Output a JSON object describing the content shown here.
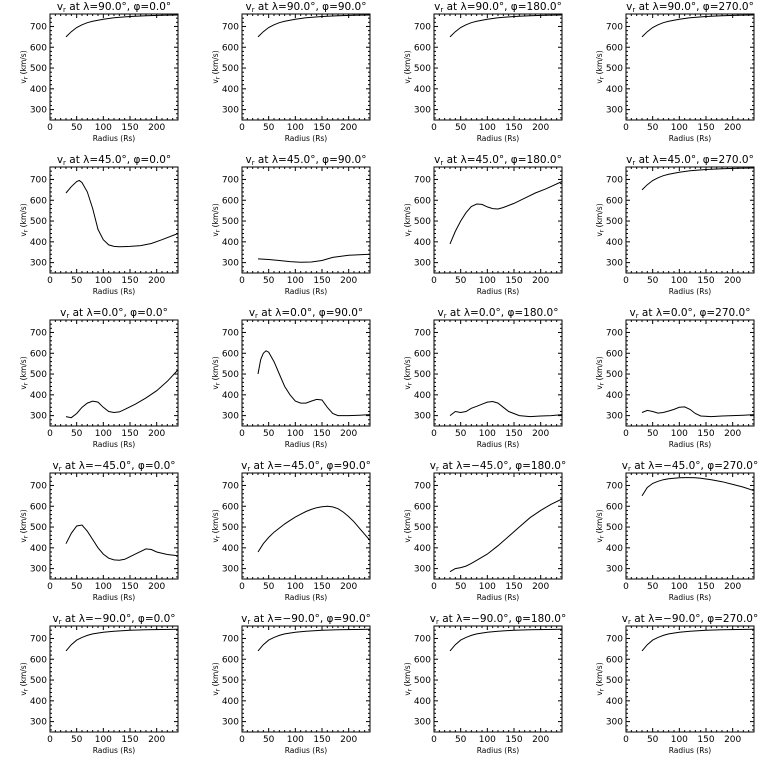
{
  "figure": {
    "xlabel": "Radius (Rs)",
    "ylabel": "vr (km/s)",
    "xlim": [
      0,
      240
    ],
    "ylim": [
      250,
      760
    ],
    "xticks": [
      "0",
      "50",
      "100",
      "150",
      "200"
    ],
    "yticks": [
      "300",
      "400",
      "500",
      "600",
      "700"
    ]
  },
  "chart_data": [
    {
      "type": "line",
      "title": "vr at λ=90.0°, φ=0.0°",
      "title_prefix": "v",
      "title_sub": "r",
      "title_rest": " at λ=90.0°, φ=0.0°",
      "x": [
        30,
        40,
        50,
        60,
        70,
        80,
        100,
        120,
        150,
        180,
        210,
        240
      ],
      "y": [
        650,
        675,
        695,
        708,
        718,
        725,
        735,
        742,
        748,
        752,
        754,
        755
      ]
    },
    {
      "type": "line",
      "title": "vr at λ=90.0°, φ=90.0°",
      "title_prefix": "v",
      "title_sub": "r",
      "title_rest": " at λ=90.0°, φ=90.0°",
      "x": [
        30,
        40,
        50,
        60,
        70,
        80,
        100,
        120,
        150,
        180,
        210,
        240
      ],
      "y": [
        650,
        675,
        695,
        708,
        718,
        725,
        735,
        742,
        748,
        752,
        754,
        755
      ]
    },
    {
      "type": "line",
      "title": "vr at λ=90.0°, φ=180.0°",
      "title_prefix": "v",
      "title_sub": "r",
      "title_rest": " at λ=90.0°, φ=180.0°",
      "x": [
        30,
        40,
        50,
        60,
        70,
        80,
        100,
        120,
        150,
        180,
        210,
        240
      ],
      "y": [
        650,
        675,
        695,
        708,
        718,
        725,
        735,
        742,
        748,
        752,
        754,
        755
      ]
    },
    {
      "type": "line",
      "title": "vr at λ=90.0°, φ=270.0°",
      "title_prefix": "v",
      "title_sub": "r",
      "title_rest": " at λ=90.0°, φ=270.0°",
      "x": [
        30,
        40,
        50,
        60,
        70,
        80,
        100,
        120,
        150,
        180,
        210,
        240
      ],
      "y": [
        650,
        675,
        695,
        708,
        718,
        725,
        735,
        742,
        748,
        752,
        754,
        755
      ]
    },
    {
      "type": "line",
      "title": "vr at λ=45.0°, φ=0.0°",
      "title_prefix": "v",
      "title_sub": "r",
      "title_rest": " at λ=45.0°, φ=0.0°",
      "x": [
        30,
        40,
        50,
        55,
        60,
        70,
        80,
        90,
        100,
        110,
        120,
        130,
        150,
        170,
        190,
        210,
        240
      ],
      "y": [
        635,
        665,
        690,
        695,
        685,
        640,
        560,
        460,
        410,
        385,
        378,
        376,
        378,
        382,
        392,
        410,
        440
      ]
    },
    {
      "type": "line",
      "title": "vr at λ=45.0°, φ=90.0°",
      "title_prefix": "v",
      "title_sub": "r",
      "title_rest": " at λ=45.0°, φ=90.0°",
      "x": [
        30,
        50,
        70,
        90,
        110,
        130,
        150,
        170,
        200,
        240
      ],
      "y": [
        318,
        315,
        310,
        305,
        302,
        303,
        310,
        325,
        335,
        340
      ]
    },
    {
      "type": "line",
      "title": "vr at λ=45.0°, φ=180.0°",
      "title_prefix": "v",
      "title_sub": "r",
      "title_rest": " at λ=45.0°, φ=180.0°",
      "x": [
        30,
        40,
        50,
        60,
        70,
        80,
        90,
        100,
        110,
        120,
        130,
        150,
        170,
        190,
        210,
        240
      ],
      "y": [
        390,
        450,
        500,
        540,
        570,
        582,
        580,
        568,
        560,
        558,
        565,
        585,
        610,
        635,
        655,
        690
      ]
    },
    {
      "type": "line",
      "title": "vr at λ=45.0°, φ=270.0°",
      "title_prefix": "v",
      "title_sub": "r",
      "title_rest": " at λ=45.0°, φ=270.0°",
      "x": [
        30,
        40,
        50,
        60,
        70,
        80,
        100,
        120,
        150,
        180,
        210,
        240
      ],
      "y": [
        650,
        675,
        695,
        708,
        718,
        725,
        735,
        742,
        748,
        752,
        754,
        755
      ]
    },
    {
      "type": "line",
      "title": "vr at λ=0.0°, φ=0.0°",
      "title_prefix": "v",
      "title_sub": "r",
      "title_rest": " at λ=0.0°, φ=0.0°",
      "x": [
        30,
        40,
        50,
        60,
        70,
        80,
        90,
        100,
        110,
        120,
        130,
        140,
        160,
        180,
        200,
        220,
        240
      ],
      "y": [
        295,
        290,
        310,
        340,
        360,
        370,
        365,
        340,
        320,
        315,
        318,
        330,
        355,
        385,
        420,
        465,
        520
      ]
    },
    {
      "type": "line",
      "title": "vr at λ=0.0°, φ=90.0°",
      "title_prefix": "v",
      "title_sub": "r",
      "title_rest": " at λ=0.0°, φ=90.0°",
      "x": [
        30,
        35,
        40,
        45,
        50,
        60,
        70,
        80,
        90,
        100,
        110,
        120,
        130,
        140,
        150,
        160,
        170,
        180,
        200,
        220,
        240
      ],
      "y": [
        500,
        570,
        600,
        612,
        605,
        560,
        500,
        440,
        400,
        370,
        360,
        360,
        370,
        378,
        375,
        340,
        310,
        300,
        300,
        302,
        305
      ]
    },
    {
      "type": "line",
      "title": "vr at λ=0.0°, φ=180.0°",
      "title_prefix": "v",
      "title_sub": "r",
      "title_rest": " at λ=0.0°, φ=180.0°",
      "x": [
        30,
        40,
        50,
        60,
        70,
        80,
        90,
        100,
        110,
        120,
        130,
        140,
        160,
        180,
        200,
        220,
        240
      ],
      "y": [
        300,
        320,
        315,
        320,
        335,
        345,
        355,
        365,
        368,
        360,
        340,
        320,
        300,
        295,
        298,
        300,
        305
      ]
    },
    {
      "type": "line",
      "title": "vr at λ=0.0°, φ=270.0°",
      "title_prefix": "v",
      "title_sub": "r",
      "title_rest": " at λ=0.0°, φ=270.0°",
      "x": [
        30,
        40,
        50,
        60,
        70,
        80,
        90,
        100,
        110,
        120,
        130,
        140,
        160,
        180,
        200,
        220,
        240
      ],
      "y": [
        315,
        325,
        320,
        312,
        315,
        322,
        330,
        340,
        342,
        330,
        310,
        298,
        295,
        298,
        300,
        302,
        305
      ]
    },
    {
      "type": "line",
      "title": "vr at λ=-45.0°, φ=0.0°",
      "title_prefix": "v",
      "title_sub": "r",
      "title_rest": " at λ=−45.0°, φ=0.0°",
      "x": [
        30,
        40,
        50,
        60,
        70,
        80,
        90,
        100,
        110,
        120,
        130,
        140,
        160,
        180,
        190,
        200,
        220,
        240
      ],
      "y": [
        420,
        470,
        505,
        510,
        480,
        440,
        400,
        370,
        350,
        342,
        340,
        345,
        370,
        395,
        392,
        380,
        368,
        362
      ]
    },
    {
      "type": "line",
      "title": "vr at λ=-45.0°, φ=90.0°",
      "title_prefix": "v",
      "title_sub": "r",
      "title_rest": " at λ=−45.0°, φ=90.0°",
      "x": [
        30,
        40,
        50,
        60,
        70,
        80,
        90,
        100,
        110,
        120,
        130,
        140,
        150,
        160,
        170,
        180,
        190,
        200,
        210,
        220,
        230,
        240
      ],
      "y": [
        380,
        420,
        450,
        475,
        495,
        515,
        532,
        548,
        562,
        575,
        585,
        593,
        598,
        600,
        597,
        588,
        572,
        550,
        525,
        495,
        465,
        435
      ]
    },
    {
      "type": "line",
      "title": "vr at λ=-45.0°, φ=180.0°",
      "title_prefix": "v",
      "title_sub": "r",
      "title_rest": " at λ=−45.0°, φ=180.0°",
      "x": [
        30,
        40,
        50,
        60,
        70,
        80,
        100,
        120,
        140,
        160,
        180,
        200,
        220,
        240
      ],
      "y": [
        285,
        300,
        305,
        312,
        325,
        340,
        370,
        410,
        455,
        500,
        545,
        580,
        610,
        635
      ]
    },
    {
      "type": "line",
      "title": "vr at λ=-45.0°, φ=270.0°",
      "title_prefix": "v",
      "title_sub": "r",
      "title_rest": " at λ=−45.0°, φ=270.0°",
      "x": [
        30,
        40,
        50,
        60,
        70,
        80,
        90,
        100,
        110,
        120,
        130,
        140,
        160,
        180,
        200,
        220,
        240
      ],
      "y": [
        650,
        690,
        710,
        720,
        728,
        732,
        735,
        737,
        738,
        738,
        737,
        735,
        728,
        718,
        705,
        692,
        675
      ]
    },
    {
      "type": "line",
      "title": "vr at λ=-90.0°, φ=0.0°",
      "title_prefix": "v",
      "title_sub": "r",
      "title_rest": " at λ=−90.0°, φ=0.0°",
      "x": [
        30,
        40,
        50,
        60,
        70,
        80,
        100,
        120,
        150,
        180,
        210,
        240
      ],
      "y": [
        640,
        670,
        692,
        705,
        715,
        722,
        730,
        735,
        740,
        742,
        743,
        744
      ]
    },
    {
      "type": "line",
      "title": "vr at λ=-90.0°, φ=90.0°",
      "title_prefix": "v",
      "title_sub": "r",
      "title_rest": " at λ=−90.0°, φ=90.0°",
      "x": [
        30,
        40,
        50,
        60,
        70,
        80,
        100,
        120,
        150,
        180,
        210,
        240
      ],
      "y": [
        640,
        670,
        692,
        705,
        715,
        722,
        730,
        735,
        740,
        742,
        743,
        744
      ]
    },
    {
      "type": "line",
      "title": "vr at λ=-90.0°, φ=180.0°",
      "title_prefix": "v",
      "title_sub": "r",
      "title_rest": " at λ=−90.0°, φ=180.0°",
      "x": [
        30,
        40,
        50,
        60,
        70,
        80,
        100,
        120,
        150,
        180,
        210,
        240
      ],
      "y": [
        640,
        670,
        692,
        705,
        715,
        722,
        730,
        735,
        740,
        742,
        743,
        744
      ]
    },
    {
      "type": "line",
      "title": "vr at λ=-90.0°, φ=270.0°",
      "title_prefix": "v",
      "title_sub": "r",
      "title_rest": " at λ=−90.0°, φ=270.0°",
      "x": [
        30,
        40,
        50,
        60,
        70,
        80,
        100,
        120,
        150,
        180,
        210,
        240
      ],
      "y": [
        640,
        670,
        692,
        705,
        715,
        722,
        730,
        735,
        740,
        742,
        743,
        744
      ]
    }
  ]
}
